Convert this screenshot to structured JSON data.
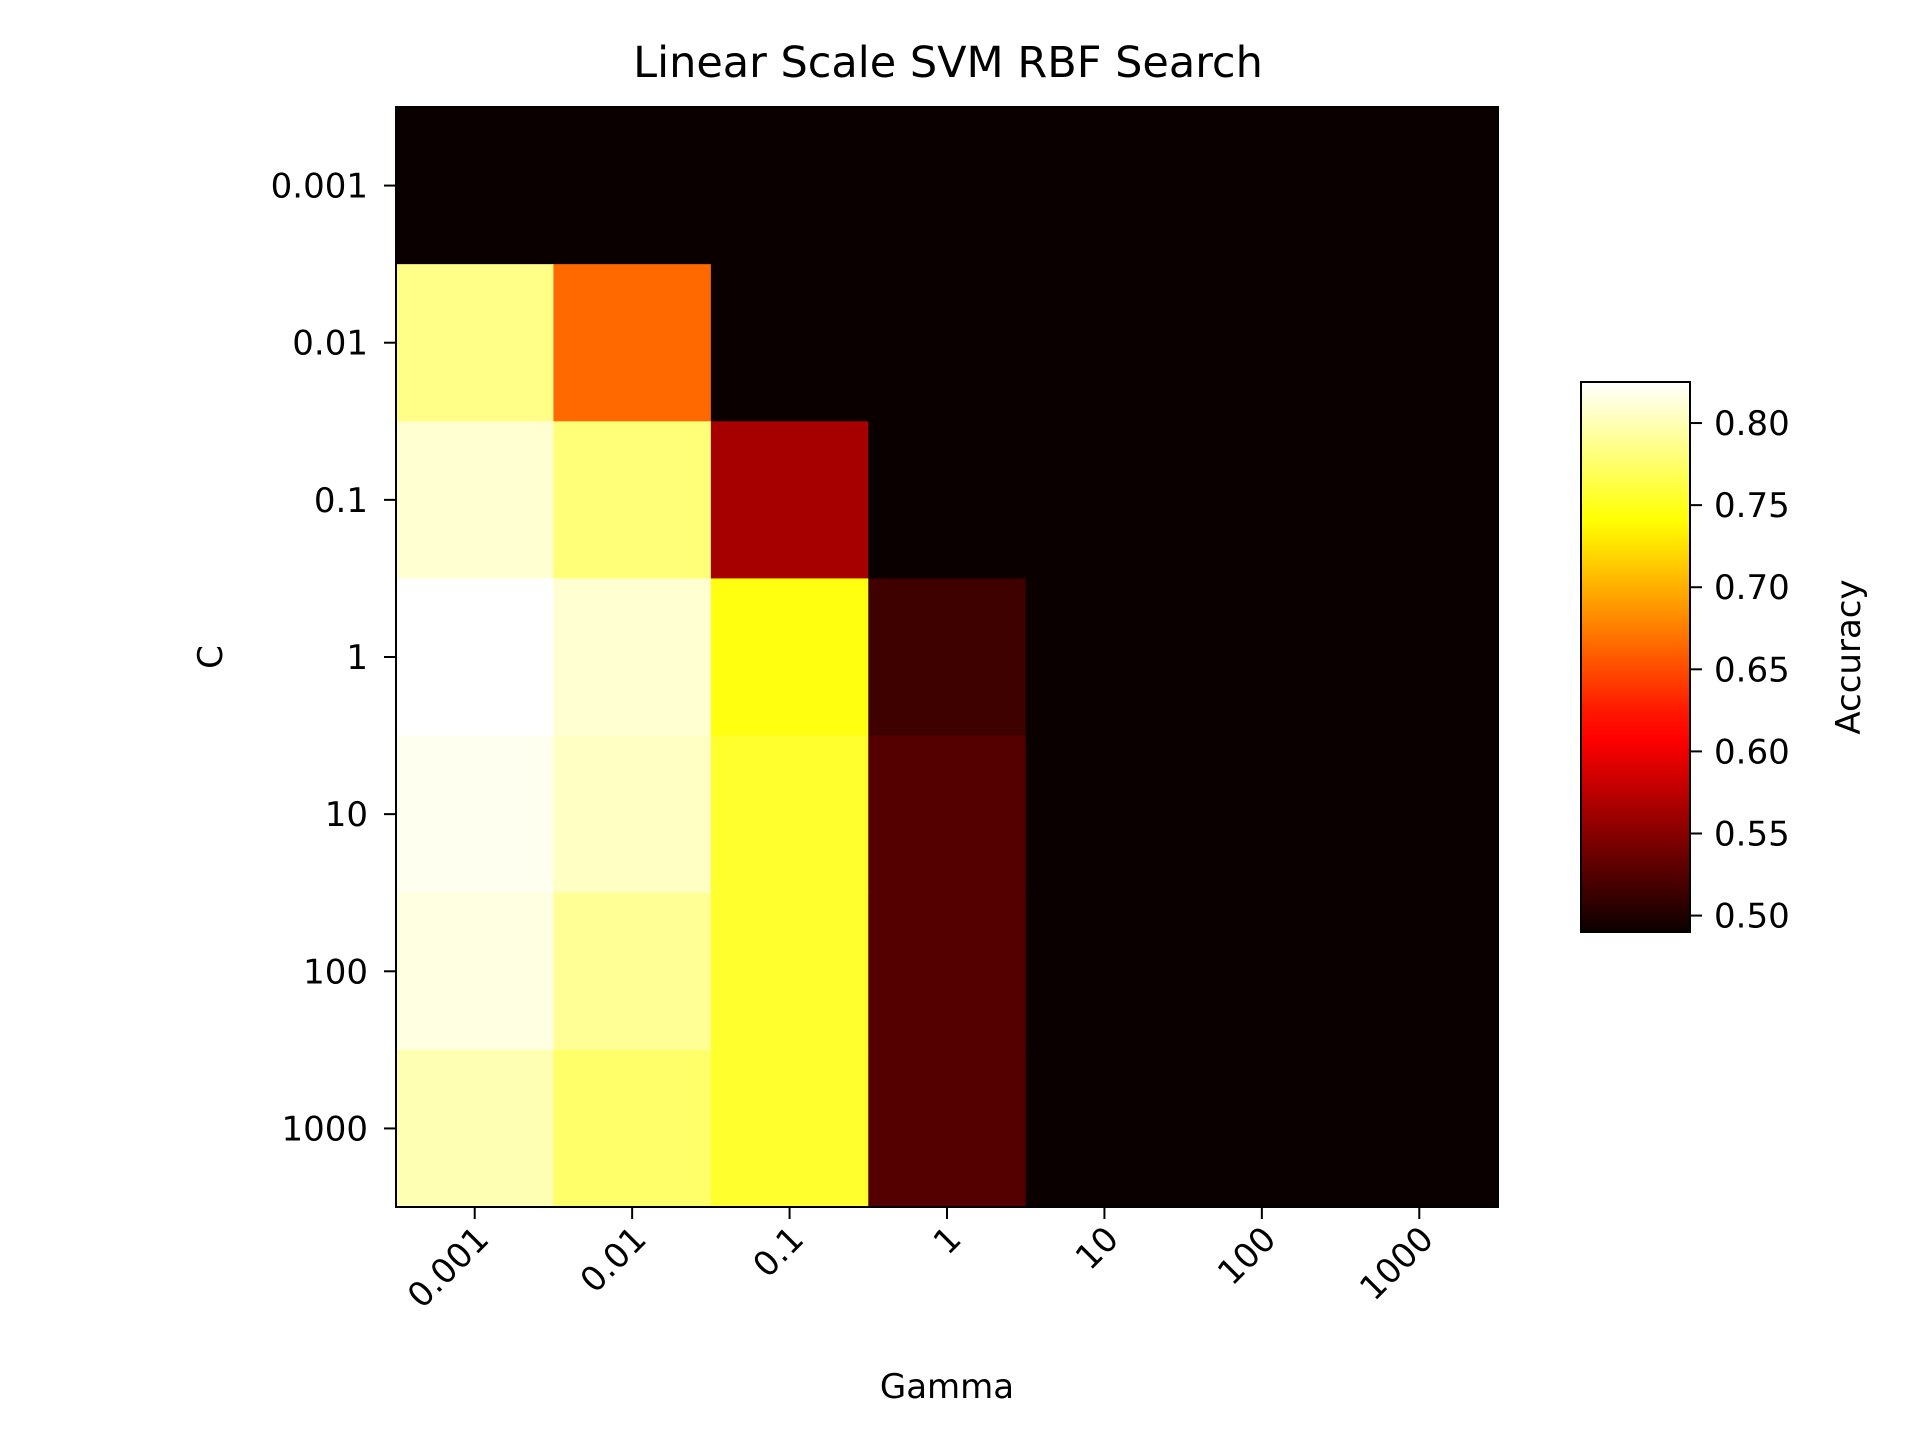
{
  "chart_data": {
    "type": "heatmap",
    "title": "Linear Scale SVM RBF Search",
    "xlabel": "Gamma",
    "ylabel": "C",
    "x_categories": [
      "0.001",
      "0.01",
      "0.1",
      "1",
      "10",
      "100",
      "1000"
    ],
    "y_categories": [
      "0.001",
      "0.01",
      "0.1",
      "1",
      "10",
      "100",
      "1000"
    ],
    "values": [
      [
        0.49,
        0.49,
        0.49,
        0.49,
        0.49,
        0.49,
        0.49
      ],
      [
        0.785,
        0.665,
        0.49,
        0.49,
        0.49,
        0.49,
        0.49
      ],
      [
        0.81,
        0.78,
        0.565,
        0.49,
        0.49,
        0.49,
        0.49
      ],
      [
        0.825,
        0.81,
        0.745,
        0.515,
        0.49,
        0.49,
        0.49
      ],
      [
        0.82,
        0.805,
        0.755,
        0.525,
        0.49,
        0.49,
        0.49
      ],
      [
        0.815,
        0.79,
        0.755,
        0.525,
        0.49,
        0.49,
        0.49
      ],
      [
        0.8,
        0.775,
        0.755,
        0.525,
        0.49,
        0.49,
        0.49
      ]
    ],
    "colormap": "hot",
    "colorbar": {
      "label": "Accuracy",
      "range": [
        0.49,
        0.825
      ],
      "ticks": [
        "0.50",
        "0.55",
        "0.60",
        "0.65",
        "0.70",
        "0.75",
        "0.80"
      ]
    },
    "grid": false,
    "x_tick_rotation": 45
  }
}
